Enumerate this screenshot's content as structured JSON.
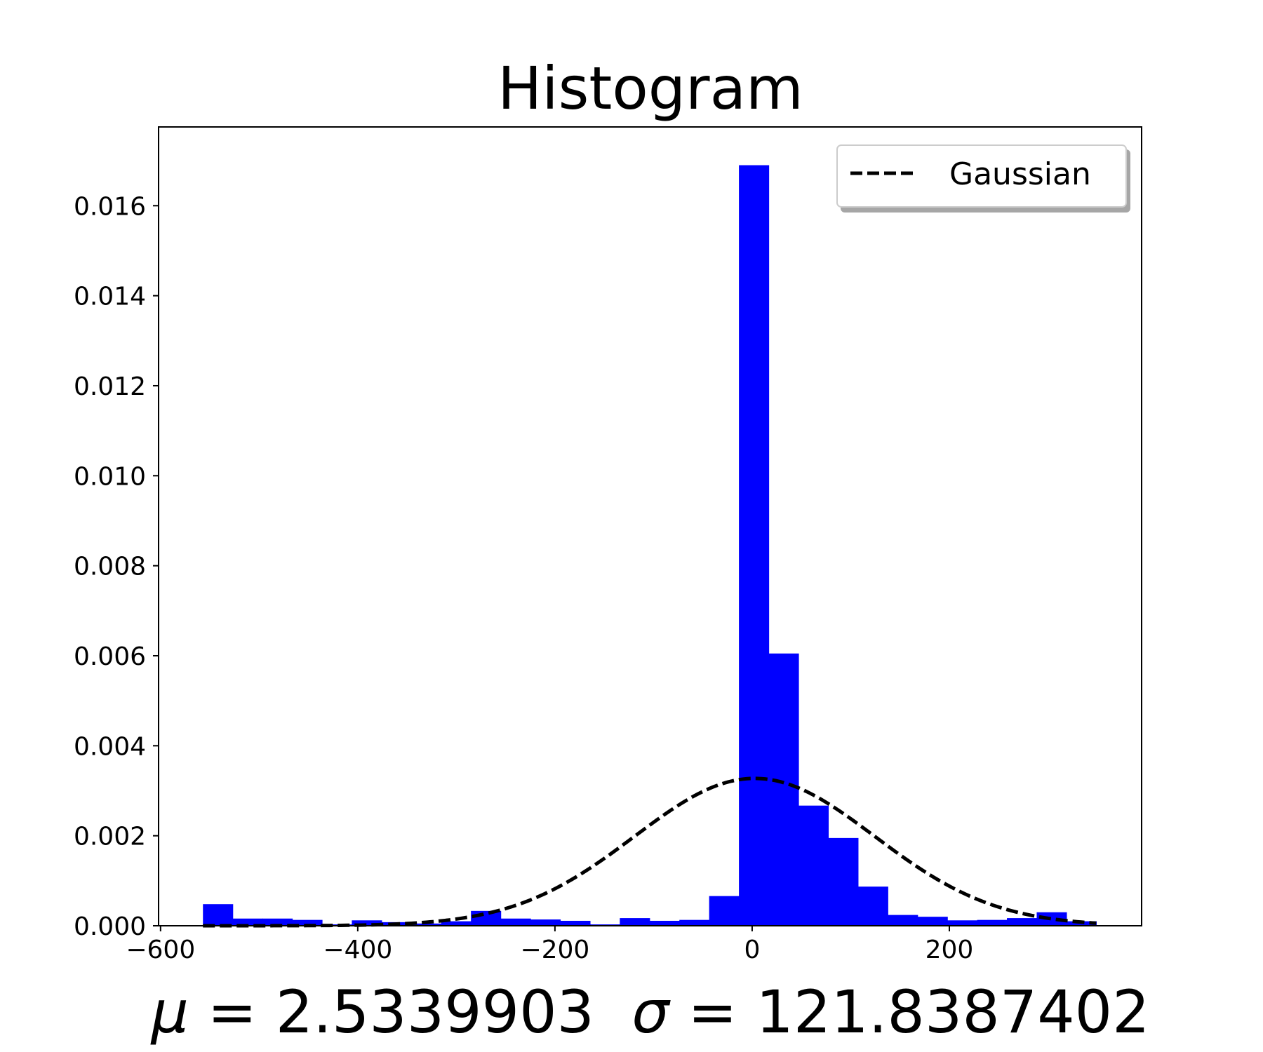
{
  "chart_data": {
    "type": "bar",
    "title": "Histogram",
    "xlabel_parts": [
      "μ",
      " = 2.5339903  ",
      "σ",
      " = 121.8387402"
    ],
    "xlim": [
      -602,
      395
    ],
    "ylim": [
      0,
      0.01775
    ],
    "x_ticks": [
      {
        "value": -600,
        "label": "−600"
      },
      {
        "value": -400,
        "label": "−400"
      },
      {
        "value": -200,
        "label": "−200"
      },
      {
        "value": 0,
        "label": "0"
      },
      {
        "value": 200,
        "label": "200"
      }
    ],
    "y_ticks": [
      {
        "value": 0.0,
        "label": "0.000"
      },
      {
        "value": 0.002,
        "label": "0.002"
      },
      {
        "value": 0.004,
        "label": "0.004"
      },
      {
        "value": 0.006,
        "label": "0.006"
      },
      {
        "value": 0.008,
        "label": "0.008"
      },
      {
        "value": 0.01,
        "label": "0.010"
      },
      {
        "value": 0.012,
        "label": "0.012"
      },
      {
        "value": 0.014,
        "label": "0.014"
      },
      {
        "value": 0.016,
        "label": "0.016"
      }
    ],
    "bin_edges": [
      -557.0,
      -526.8,
      -496.6,
      -466.4,
      -436.2,
      -406.0,
      -375.8,
      -345.6,
      -315.4,
      -285.2,
      -255.0,
      -224.8,
      -194.6,
      -164.4,
      -134.2,
      -104.0,
      -73.8,
      -43.6,
      -13.4,
      16.8,
      47.0,
      77.2,
      107.4,
      137.6,
      167.8,
      198.0,
      228.2,
      258.4,
      288.6,
      318.8,
      349.0
    ],
    "bar_values": [
      0.00048,
      0.00016,
      0.00016,
      0.00013,
      3e-05,
      0.00012,
      8e-05,
      5e-05,
      0.0001,
      0.00033,
      0.00016,
      0.00014,
      0.00011,
      3e-05,
      0.00017,
      0.00011,
      0.00013,
      0.00066,
      0.0169,
      0.00605,
      0.00267,
      0.00195,
      0.00087,
      0.00024,
      0.0002,
      0.00012,
      0.00013,
      0.00017,
      0.0003,
      0.0001
    ],
    "bar_color": "#0000ff",
    "gaussian": {
      "name": "Gaussian",
      "mu": 2.5339903,
      "sigma": 121.8387402,
      "x_range": [
        -557,
        349
      ],
      "color": "#000000",
      "style": "dashed"
    },
    "legend_position": "top-right",
    "grid": false
  }
}
